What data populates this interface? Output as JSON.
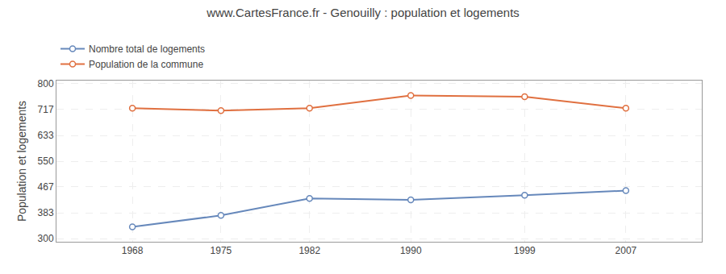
{
  "chart_data": {
    "type": "line",
    "title": "www.CartesFrance.fr - Genouilly : population et logements",
    "y_label": "Population et logements",
    "x": [
      1968,
      1975,
      1982,
      1990,
      1999,
      2007
    ],
    "series": [
      {
        "name": "Nombre total de logements",
        "color": "#6688bb",
        "marker": "circle",
        "values": [
          338,
          375,
          430,
          425,
          440,
          455
        ]
      },
      {
        "name": "Population de la commune",
        "color": "#e07040",
        "marker": "circle",
        "values": [
          721,
          713,
          721,
          762,
          758,
          721
        ]
      }
    ],
    "xlim": [
      1962,
      2013
    ],
    "xticks": [
      1968,
      1975,
      1982,
      1990,
      1999,
      2007
    ],
    "ylim": [
      290,
      810
    ],
    "yticks": [
      300,
      383,
      467,
      550,
      633,
      717,
      800
    ],
    "grid": true,
    "legend": "top"
  }
}
